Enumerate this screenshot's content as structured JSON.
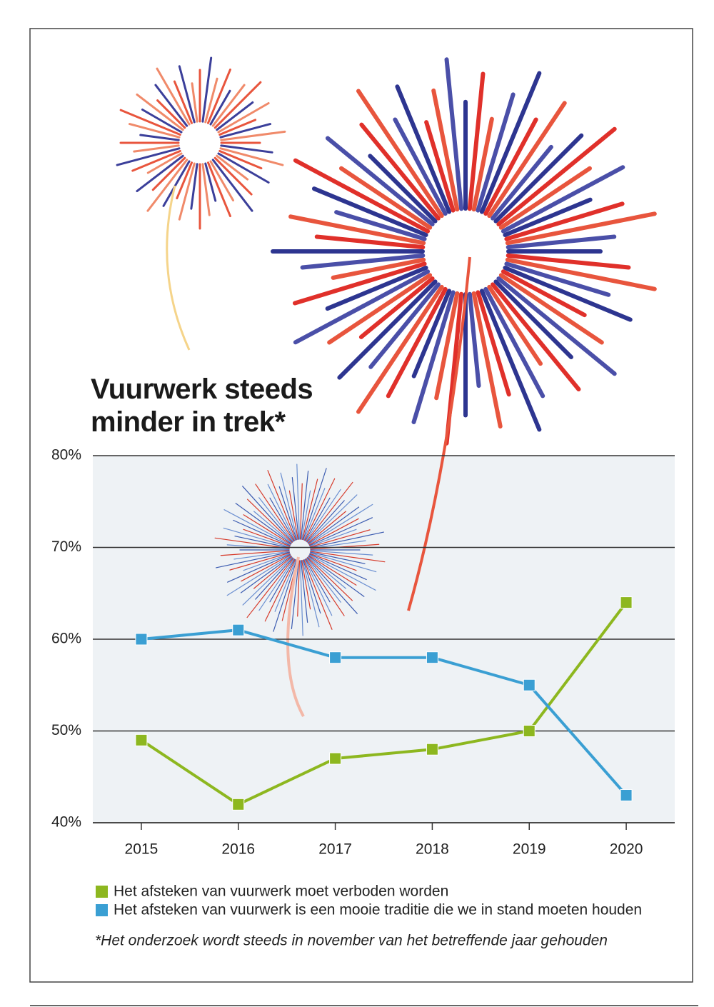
{
  "chart_data": {
    "type": "line",
    "title": "Vuurwerk steeds minder in trek*",
    "categories": [
      "2015",
      "2016",
      "2017",
      "2018",
      "2019",
      "2020"
    ],
    "series": [
      {
        "name": "Het afsteken van vuurwerk moet verboden worden",
        "color": "#8db71f",
        "values": [
          49,
          42,
          47,
          48,
          50,
          64
        ]
      },
      {
        "name": "Het afsteken van vuurwerk is een mooie traditie die we in stand moeten houden",
        "color": "#3a9fd3",
        "values": [
          60,
          61,
          58,
          58,
          55,
          43
        ]
      }
    ],
    "ylim": [
      40,
      80
    ],
    "yticks": [
      {
        "value": 40,
        "label": "40%"
      },
      {
        "value": 50,
        "label": "50%"
      },
      {
        "value": 60,
        "label": "60%"
      },
      {
        "value": 70,
        "label": "70%"
      },
      {
        "value": 80,
        "label": "80%"
      }
    ],
    "grid": true,
    "footnote": "*Het onderzoek wordt steeds in november van het betreffende jaar gehouden"
  }
}
